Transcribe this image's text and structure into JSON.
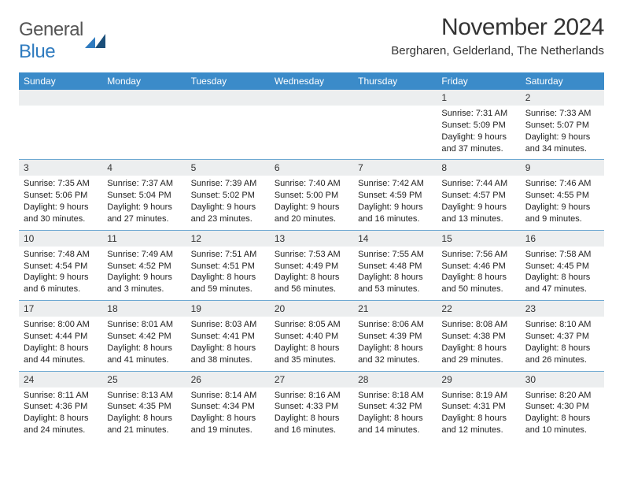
{
  "logo": {
    "text_general": "General",
    "text_blue": "Blue"
  },
  "title": "November 2024",
  "location": "Bergharen, Gelderland, The Netherlands",
  "colors": {
    "header_bg": "#3b8bc9",
    "daynum_bg": "#eceeef",
    "row_border": "#6fa9d2",
    "text": "#222222",
    "logo_gray": "#555555",
    "logo_blue": "#2f7bbf"
  },
  "day_headers": [
    "Sunday",
    "Monday",
    "Tuesday",
    "Wednesday",
    "Thursday",
    "Friday",
    "Saturday"
  ],
  "weeks": [
    [
      {
        "num": "",
        "sunrise": "",
        "sunset": "",
        "daylight": ""
      },
      {
        "num": "",
        "sunrise": "",
        "sunset": "",
        "daylight": ""
      },
      {
        "num": "",
        "sunrise": "",
        "sunset": "",
        "daylight": ""
      },
      {
        "num": "",
        "sunrise": "",
        "sunset": "",
        "daylight": ""
      },
      {
        "num": "",
        "sunrise": "",
        "sunset": "",
        "daylight": ""
      },
      {
        "num": "1",
        "sunrise": "Sunrise: 7:31 AM",
        "sunset": "Sunset: 5:09 PM",
        "daylight": "Daylight: 9 hours and 37 minutes."
      },
      {
        "num": "2",
        "sunrise": "Sunrise: 7:33 AM",
        "sunset": "Sunset: 5:07 PM",
        "daylight": "Daylight: 9 hours and 34 minutes."
      }
    ],
    [
      {
        "num": "3",
        "sunrise": "Sunrise: 7:35 AM",
        "sunset": "Sunset: 5:06 PM",
        "daylight": "Daylight: 9 hours and 30 minutes."
      },
      {
        "num": "4",
        "sunrise": "Sunrise: 7:37 AM",
        "sunset": "Sunset: 5:04 PM",
        "daylight": "Daylight: 9 hours and 27 minutes."
      },
      {
        "num": "5",
        "sunrise": "Sunrise: 7:39 AM",
        "sunset": "Sunset: 5:02 PM",
        "daylight": "Daylight: 9 hours and 23 minutes."
      },
      {
        "num": "6",
        "sunrise": "Sunrise: 7:40 AM",
        "sunset": "Sunset: 5:00 PM",
        "daylight": "Daylight: 9 hours and 20 minutes."
      },
      {
        "num": "7",
        "sunrise": "Sunrise: 7:42 AM",
        "sunset": "Sunset: 4:59 PM",
        "daylight": "Daylight: 9 hours and 16 minutes."
      },
      {
        "num": "8",
        "sunrise": "Sunrise: 7:44 AM",
        "sunset": "Sunset: 4:57 PM",
        "daylight": "Daylight: 9 hours and 13 minutes."
      },
      {
        "num": "9",
        "sunrise": "Sunrise: 7:46 AM",
        "sunset": "Sunset: 4:55 PM",
        "daylight": "Daylight: 9 hours and 9 minutes."
      }
    ],
    [
      {
        "num": "10",
        "sunrise": "Sunrise: 7:48 AM",
        "sunset": "Sunset: 4:54 PM",
        "daylight": "Daylight: 9 hours and 6 minutes."
      },
      {
        "num": "11",
        "sunrise": "Sunrise: 7:49 AM",
        "sunset": "Sunset: 4:52 PM",
        "daylight": "Daylight: 9 hours and 3 minutes."
      },
      {
        "num": "12",
        "sunrise": "Sunrise: 7:51 AM",
        "sunset": "Sunset: 4:51 PM",
        "daylight": "Daylight: 8 hours and 59 minutes."
      },
      {
        "num": "13",
        "sunrise": "Sunrise: 7:53 AM",
        "sunset": "Sunset: 4:49 PM",
        "daylight": "Daylight: 8 hours and 56 minutes."
      },
      {
        "num": "14",
        "sunrise": "Sunrise: 7:55 AM",
        "sunset": "Sunset: 4:48 PM",
        "daylight": "Daylight: 8 hours and 53 minutes."
      },
      {
        "num": "15",
        "sunrise": "Sunrise: 7:56 AM",
        "sunset": "Sunset: 4:46 PM",
        "daylight": "Daylight: 8 hours and 50 minutes."
      },
      {
        "num": "16",
        "sunrise": "Sunrise: 7:58 AM",
        "sunset": "Sunset: 4:45 PM",
        "daylight": "Daylight: 8 hours and 47 minutes."
      }
    ],
    [
      {
        "num": "17",
        "sunrise": "Sunrise: 8:00 AM",
        "sunset": "Sunset: 4:44 PM",
        "daylight": "Daylight: 8 hours and 44 minutes."
      },
      {
        "num": "18",
        "sunrise": "Sunrise: 8:01 AM",
        "sunset": "Sunset: 4:42 PM",
        "daylight": "Daylight: 8 hours and 41 minutes."
      },
      {
        "num": "19",
        "sunrise": "Sunrise: 8:03 AM",
        "sunset": "Sunset: 4:41 PM",
        "daylight": "Daylight: 8 hours and 38 minutes."
      },
      {
        "num": "20",
        "sunrise": "Sunrise: 8:05 AM",
        "sunset": "Sunset: 4:40 PM",
        "daylight": "Daylight: 8 hours and 35 minutes."
      },
      {
        "num": "21",
        "sunrise": "Sunrise: 8:06 AM",
        "sunset": "Sunset: 4:39 PM",
        "daylight": "Daylight: 8 hours and 32 minutes."
      },
      {
        "num": "22",
        "sunrise": "Sunrise: 8:08 AM",
        "sunset": "Sunset: 4:38 PM",
        "daylight": "Daylight: 8 hours and 29 minutes."
      },
      {
        "num": "23",
        "sunrise": "Sunrise: 8:10 AM",
        "sunset": "Sunset: 4:37 PM",
        "daylight": "Daylight: 8 hours and 26 minutes."
      }
    ],
    [
      {
        "num": "24",
        "sunrise": "Sunrise: 8:11 AM",
        "sunset": "Sunset: 4:36 PM",
        "daylight": "Daylight: 8 hours and 24 minutes."
      },
      {
        "num": "25",
        "sunrise": "Sunrise: 8:13 AM",
        "sunset": "Sunset: 4:35 PM",
        "daylight": "Daylight: 8 hours and 21 minutes."
      },
      {
        "num": "26",
        "sunrise": "Sunrise: 8:14 AM",
        "sunset": "Sunset: 4:34 PM",
        "daylight": "Daylight: 8 hours and 19 minutes."
      },
      {
        "num": "27",
        "sunrise": "Sunrise: 8:16 AM",
        "sunset": "Sunset: 4:33 PM",
        "daylight": "Daylight: 8 hours and 16 minutes."
      },
      {
        "num": "28",
        "sunrise": "Sunrise: 8:18 AM",
        "sunset": "Sunset: 4:32 PM",
        "daylight": "Daylight: 8 hours and 14 minutes."
      },
      {
        "num": "29",
        "sunrise": "Sunrise: 8:19 AM",
        "sunset": "Sunset: 4:31 PM",
        "daylight": "Daylight: 8 hours and 12 minutes."
      },
      {
        "num": "30",
        "sunrise": "Sunrise: 8:20 AM",
        "sunset": "Sunset: 4:30 PM",
        "daylight": "Daylight: 8 hours and 10 minutes."
      }
    ]
  ]
}
